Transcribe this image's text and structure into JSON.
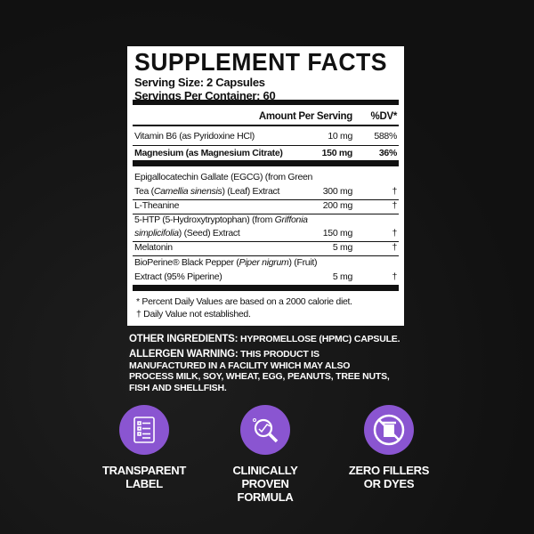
{
  "title": "SUPPLEMENT FACTS",
  "serving_size": "Serving Size: 2 Capsules",
  "servings_per_container": "Servings Per Container: 60",
  "header": {
    "amount": "Amount Per Serving",
    "dv": "%DV*"
  },
  "rows": [
    {
      "l1": "Vitamin B6 (as Pyridoxine HCl)",
      "amount": "10 mg",
      "dv": "588%"
    },
    {
      "l1": "Magnesium (as Magnesium Citrate)",
      "amount": "150 mg",
      "dv": "36%"
    },
    {
      "l1": "Epigallocatechin Gallate (EGCG) (from Green",
      "l2a": "Tea (",
      "l2i": "Camellia sinensis",
      "l2b": ") (Leaf) Extract",
      "amount": "300 mg",
      "dv": "†"
    },
    {
      "l1": "L-Theanine",
      "amount": "200 mg",
      "dv": "†"
    },
    {
      "l1a": "5-HTP (5-Hydroxytryptophan) (from ",
      "l1i": "Griffonia",
      "l2i": "simplicifolia",
      "l2b": ") (Seed) Extract",
      "amount": "150 mg",
      "dv": "†"
    },
    {
      "l1": "Melatonin",
      "amount": "5 mg",
      "dv": "†"
    },
    {
      "l1a": "BioPerine® Black Pepper (",
      "l1i": "Piper nigrum",
      "l1b": ") (Fruit)",
      "l2": "Extract (95% Piperine)",
      "amount": "5 mg",
      "dv": "†"
    }
  ],
  "footnotes": [
    "* Percent Daily Values are based on a 2000 calorie diet.",
    "† Daily Value not established."
  ],
  "other_ingredients": {
    "label": "OTHER INGREDIENTS:",
    "text": " HYPROMELLOSE (HPMC) CAPSULE."
  },
  "allergen": {
    "label": "ALLERGEN WARNING:",
    "text": " THIS PRODUCT IS MANUFACTURED IN A FACILITY WHICH MAY ALSO PROCESS MILK, SOY, WHEAT, EGG, PEANUTS, TREE NUTS, FISH AND SHELLFISH."
  },
  "features": [
    {
      "l1": "TRANSPARENT",
      "l2": "LABEL",
      "icon": "checklist-icon"
    },
    {
      "l1": "CLINICALLY PROVEN",
      "l2": "FORMULA",
      "icon": "magnifier-chart-icon"
    },
    {
      "l1": "ZERO FILLERS",
      "l2": "OR DYES",
      "icon": "no-trash-icon"
    }
  ],
  "colors": {
    "accent": "#8a55d1",
    "background": "#151515"
  }
}
